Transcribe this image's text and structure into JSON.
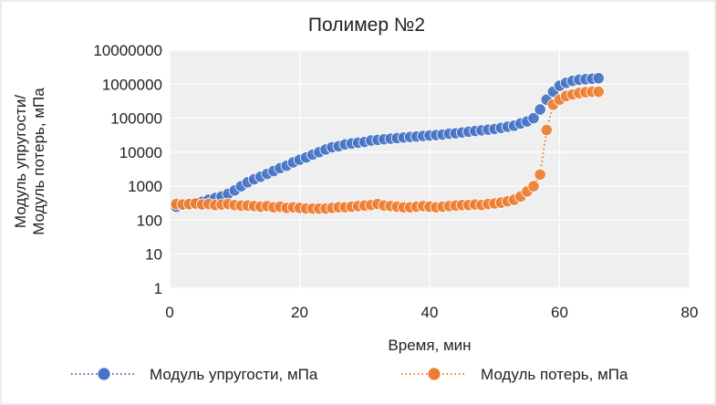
{
  "chart_data": {
    "type": "scatter",
    "title": "Полимер №2",
    "xlabel": "Время, мин",
    "ylabel_lines": [
      "Модуль упругости/",
      "Модуль потерь, мПа"
    ],
    "xlim": [
      0,
      80
    ],
    "xticks": [
      "0",
      "20",
      "40",
      "60",
      "80"
    ],
    "ylim": [
      1,
      10000000
    ],
    "yscale": "log",
    "yticks": [
      "1",
      "10",
      "100",
      "1000",
      "10000",
      "100000",
      "1000000",
      "10000000"
    ],
    "grid": true,
    "legend_position": "bottom",
    "series": [
      {
        "name": "Модуль упругости, мПа",
        "color": "#4472C4",
        "line_style": "dotted",
        "x": [
          1,
          2,
          3,
          4,
          5,
          6,
          7,
          8,
          9,
          10,
          11,
          12,
          13,
          14,
          15,
          16,
          17,
          18,
          19,
          20,
          21,
          22,
          23,
          24,
          25,
          26,
          27,
          28,
          29,
          30,
          31,
          32,
          33,
          34,
          35,
          36,
          37,
          38,
          39,
          40,
          41,
          42,
          43,
          44,
          45,
          46,
          47,
          48,
          49,
          50,
          51,
          52,
          53,
          54,
          55,
          56,
          57,
          58,
          59,
          60,
          61,
          62,
          63,
          64,
          65,
          66
        ],
        "y": [
          250,
          280,
          300,
          320,
          350,
          400,
          450,
          500,
          600,
          750,
          1000,
          1300,
          1600,
          1900,
          2300,
          2800,
          3400,
          4000,
          5000,
          6000,
          7000,
          8500,
          10000,
          12000,
          14000,
          15000,
          17000,
          18000,
          19000,
          20000,
          22000,
          23000,
          24000,
          25000,
          26000,
          27000,
          28000,
          29000,
          30000,
          31000,
          32000,
          33000,
          35000,
          36000,
          38000,
          40000,
          42000,
          44000,
          46000,
          48000,
          52000,
          56000,
          60000,
          70000,
          80000,
          100000,
          180000,
          350000,
          600000,
          900000,
          1100000,
          1250000,
          1350000,
          1400000,
          1450000,
          1500000
        ]
      },
      {
        "name": "Модуль потерь,  мПа",
        "color": "#ED7D31",
        "line_style": "dotted",
        "x": [
          1,
          2,
          3,
          4,
          5,
          6,
          7,
          8,
          9,
          10,
          11,
          12,
          13,
          14,
          15,
          16,
          17,
          18,
          19,
          20,
          21,
          22,
          23,
          24,
          25,
          26,
          27,
          28,
          29,
          30,
          31,
          32,
          33,
          34,
          35,
          36,
          37,
          38,
          39,
          40,
          41,
          42,
          43,
          44,
          45,
          46,
          47,
          48,
          49,
          50,
          51,
          52,
          53,
          54,
          55,
          56,
          57,
          58,
          59,
          60,
          61,
          62,
          63,
          64,
          65,
          66
        ],
        "y": [
          300,
          290,
          300,
          310,
          290,
          300,
          280,
          290,
          300,
          280,
          270,
          270,
          260,
          250,
          260,
          240,
          250,
          230,
          240,
          230,
          220,
          220,
          220,
          220,
          230,
          240,
          240,
          250,
          260,
          270,
          280,
          300,
          270,
          260,
          250,
          240,
          240,
          250,
          260,
          250,
          240,
          250,
          260,
          270,
          280,
          280,
          290,
          280,
          300,
          310,
          330,
          360,
          400,
          500,
          700,
          1000,
          2200,
          45000,
          250000,
          350000,
          450000,
          500000,
          550000,
          580000,
          600000,
          600000
        ]
      }
    ]
  }
}
